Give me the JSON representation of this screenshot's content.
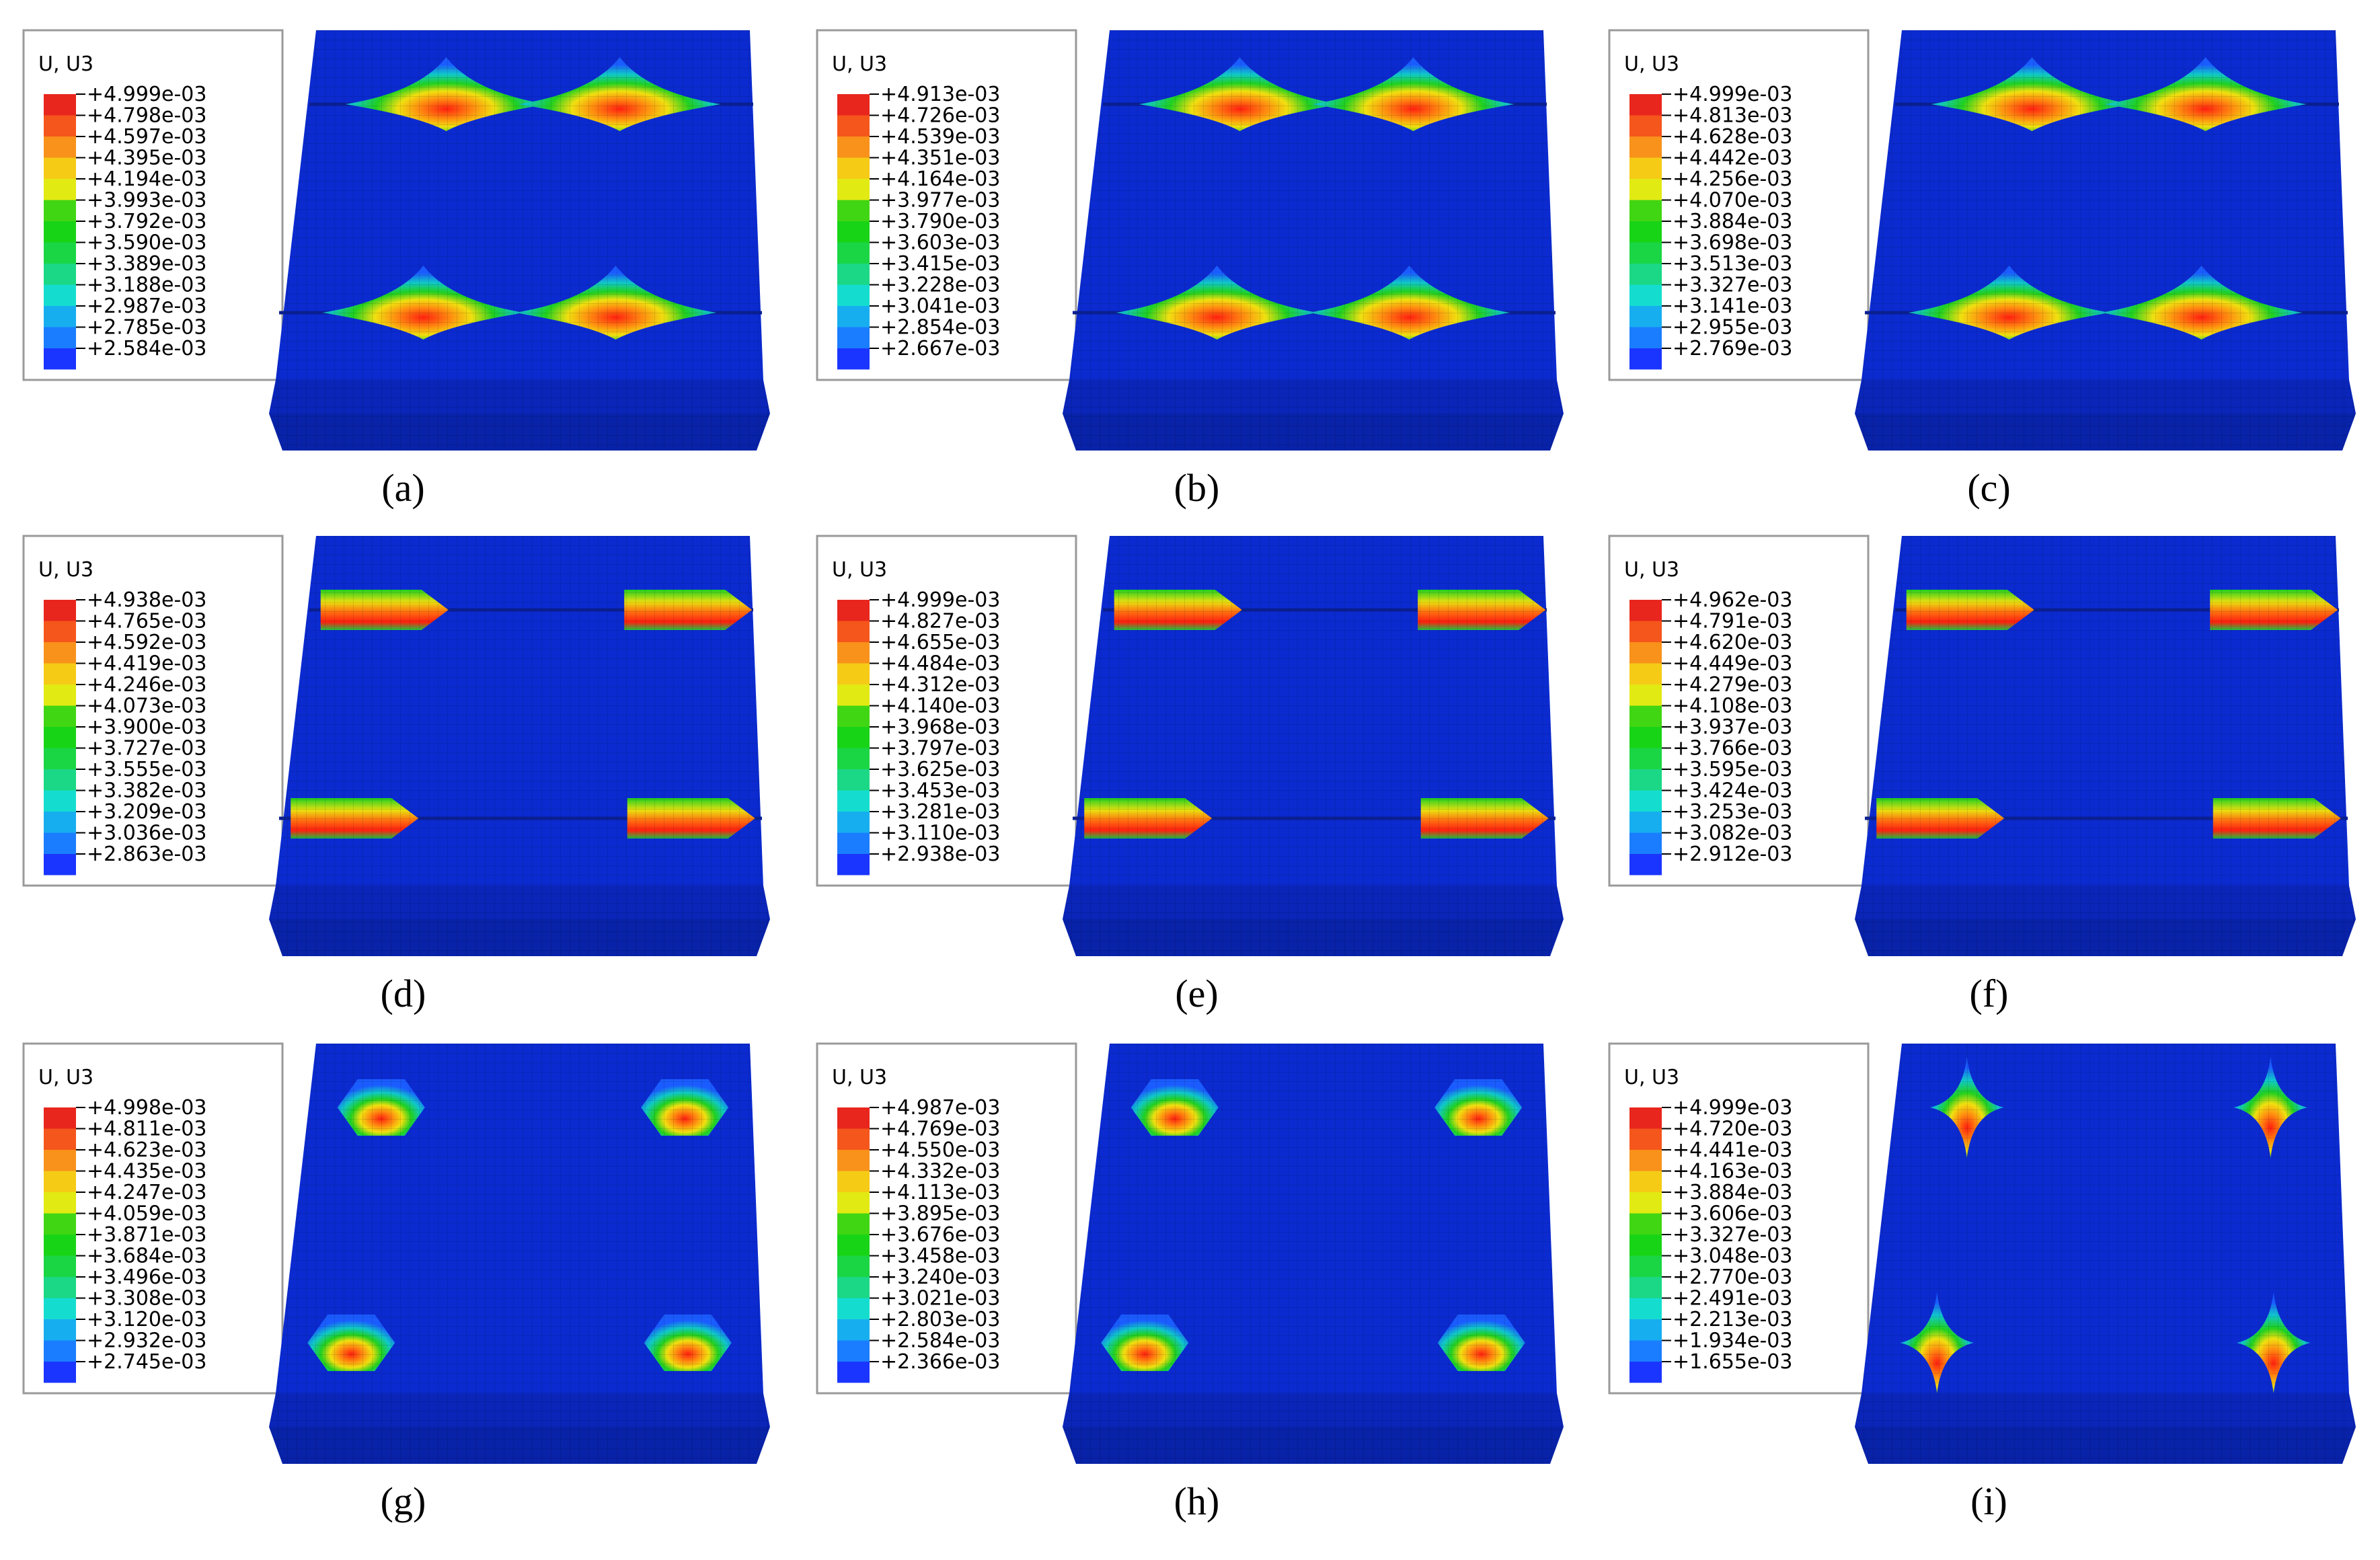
{
  "legend_title": "U, U3",
  "palette": [
    "#e8261d",
    "#f5561b",
    "#f8921a",
    "#f5cb16",
    "#e2ea13",
    "#41d613",
    "#18d416",
    "#1ad645",
    "#1ad885",
    "#14ddcf",
    "#17aef0",
    "#1a7dff",
    "#1a35ff"
  ],
  "surface_color": "#0b2bd0",
  "panels": [
    {
      "label": "(a)",
      "shape": "arc",
      "values": [
        "+4.999e-03",
        "+4.798e-03",
        "+4.597e-03",
        "+4.395e-03",
        "+4.194e-03",
        "+3.993e-03",
        "+3.792e-03",
        "+3.590e-03",
        "+3.389e-03",
        "+3.188e-03",
        "+2.987e-03",
        "+2.785e-03",
        "+2.584e-03"
      ]
    },
    {
      "label": "(b)",
      "shape": "arc",
      "values": [
        "+4.913e-03",
        "+4.726e-03",
        "+4.539e-03",
        "+4.351e-03",
        "+4.164e-03",
        "+3.977e-03",
        "+3.790e-03",
        "+3.603e-03",
        "+3.415e-03",
        "+3.228e-03",
        "+3.041e-03",
        "+2.854e-03",
        "+2.667e-03"
      ]
    },
    {
      "label": "(c)",
      "shape": "arc",
      "values": [
        "+4.999e-03",
        "+4.813e-03",
        "+4.628e-03",
        "+4.442e-03",
        "+4.256e-03",
        "+4.070e-03",
        "+3.884e-03",
        "+3.698e-03",
        "+3.513e-03",
        "+3.327e-03",
        "+3.141e-03",
        "+2.955e-03",
        "+2.769e-03"
      ]
    },
    {
      "label": "(d)",
      "shape": "band",
      "values": [
        "+4.938e-03",
        "+4.765e-03",
        "+4.592e-03",
        "+4.419e-03",
        "+4.246e-03",
        "+4.073e-03",
        "+3.900e-03",
        "+3.727e-03",
        "+3.555e-03",
        "+3.382e-03",
        "+3.209e-03",
        "+3.036e-03",
        "+2.863e-03"
      ]
    },
    {
      "label": "(e)",
      "shape": "band",
      "values": [
        "+4.999e-03",
        "+4.827e-03",
        "+4.655e-03",
        "+4.484e-03",
        "+4.312e-03",
        "+4.140e-03",
        "+3.968e-03",
        "+3.797e-03",
        "+3.625e-03",
        "+3.453e-03",
        "+3.281e-03",
        "+3.110e-03",
        "+2.938e-03"
      ]
    },
    {
      "label": "(f)",
      "shape": "band",
      "values": [
        "+4.962e-03",
        "+4.791e-03",
        "+4.620e-03",
        "+4.449e-03",
        "+4.279e-03",
        "+4.108e-03",
        "+3.937e-03",
        "+3.766e-03",
        "+3.595e-03",
        "+3.424e-03",
        "+3.253e-03",
        "+3.082e-03",
        "+2.912e-03"
      ]
    },
    {
      "label": "(g)",
      "shape": "hex",
      "values": [
        "+4.998e-03",
        "+4.811e-03",
        "+4.623e-03",
        "+4.435e-03",
        "+4.247e-03",
        "+4.059e-03",
        "+3.871e-03",
        "+3.684e-03",
        "+3.496e-03",
        "+3.308e-03",
        "+3.120e-03",
        "+2.932e-03",
        "+2.745e-03"
      ]
    },
    {
      "label": "(h)",
      "shape": "hex",
      "values": [
        "+4.987e-03",
        "+4.769e-03",
        "+4.550e-03",
        "+4.332e-03",
        "+4.113e-03",
        "+3.895e-03",
        "+3.676e-03",
        "+3.458e-03",
        "+3.240e-03",
        "+3.021e-03",
        "+2.803e-03",
        "+2.584e-03",
        "+2.366e-03"
      ]
    },
    {
      "label": "(i)",
      "shape": "star",
      "values": [
        "+4.999e-03",
        "+4.720e-03",
        "+4.441e-03",
        "+4.163e-03",
        "+3.884e-03",
        "+3.606e-03",
        "+3.327e-03",
        "+3.048e-03",
        "+2.770e-03",
        "+2.491e-03",
        "+2.213e-03",
        "+1.934e-03",
        "+1.655e-03"
      ]
    }
  ]
}
